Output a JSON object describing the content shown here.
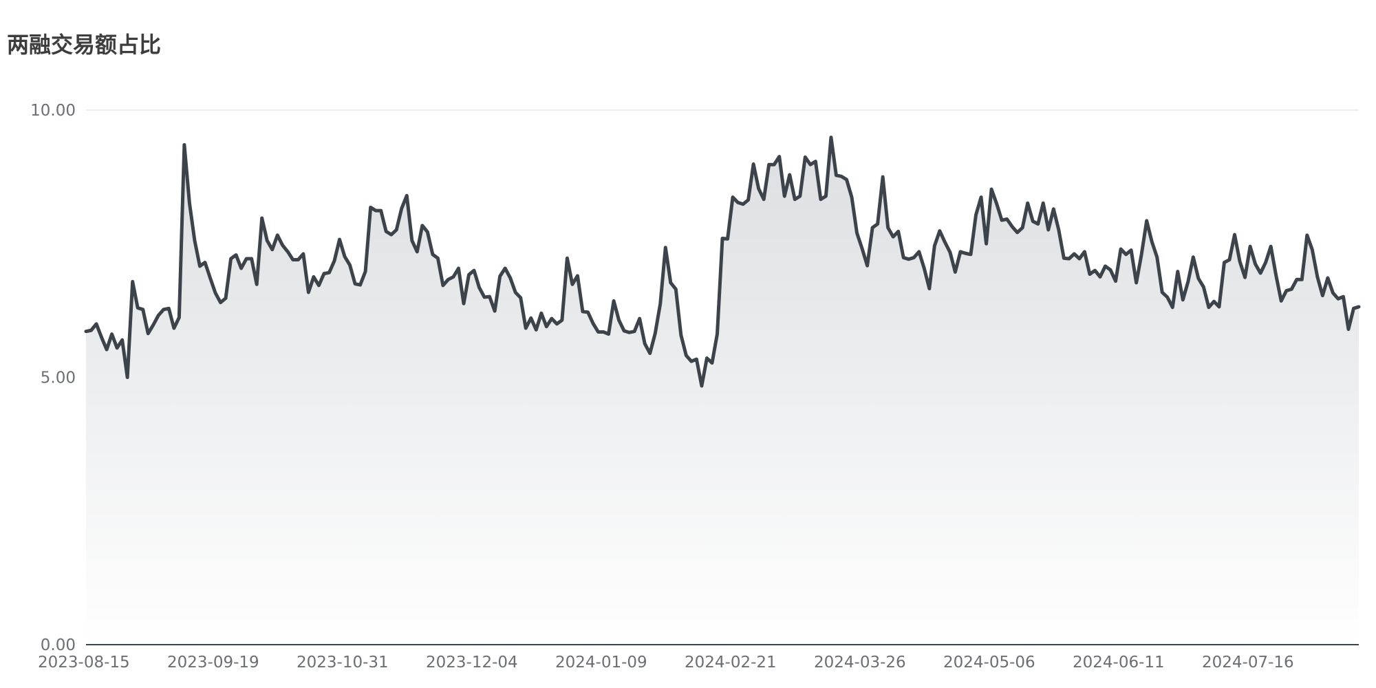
{
  "chart_data": {
    "type": "area",
    "title": "两融交易额占比",
    "xlabel": "",
    "ylabel": "",
    "ylim": [
      0,
      10
    ],
    "yticks": [
      "0.00",
      "5.00",
      "10.00"
    ],
    "xticks": [
      "2023-08-15",
      "2023-09-19",
      "2023-10-31",
      "2023-12-04",
      "2024-01-09",
      "2024-02-21",
      "2024-03-26",
      "2024-05-06",
      "2024-06-11",
      "2024-07-16"
    ],
    "grid": true,
    "legend": "none",
    "line_color": "#3d434b",
    "fill_color": "#dcdee1",
    "values": [
      5.86,
      5.88,
      6.0,
      5.75,
      5.52,
      5.81,
      5.55,
      5.7,
      5.0,
      6.79,
      6.3,
      6.27,
      5.82,
      5.98,
      6.16,
      6.27,
      6.29,
      5.92,
      6.12,
      9.35,
      8.26,
      7.56,
      7.08,
      7.15,
      6.86,
      6.58,
      6.4,
      6.48,
      7.22,
      7.29,
      7.04,
      7.22,
      7.22,
      6.74,
      7.98,
      7.56,
      7.39,
      7.66,
      7.47,
      7.35,
      7.2,
      7.2,
      7.31,
      6.59,
      6.88,
      6.72,
      6.94,
      6.96,
      7.18,
      7.58,
      7.26,
      7.1,
      6.75,
      6.73,
      6.98,
      8.18,
      8.12,
      8.12,
      7.73,
      7.67,
      7.76,
      8.16,
      8.4,
      7.56,
      7.35,
      7.84,
      7.72,
      7.3,
      7.23,
      6.72,
      6.83,
      6.88,
      7.04,
      6.38,
      6.92,
      7.0,
      6.68,
      6.5,
      6.51,
      6.24,
      6.89,
      7.04,
      6.86,
      6.59,
      6.49,
      5.92,
      6.11,
      5.89,
      6.2,
      5.95,
      6.1,
      6.0,
      6.07,
      7.23,
      6.74,
      6.9,
      6.23,
      6.22,
      6.01,
      5.85,
      5.85,
      5.81,
      6.43,
      6.07,
      5.87,
      5.84,
      5.86,
      6.1,
      5.63,
      5.45,
      5.82,
      6.38,
      7.43,
      6.77,
      6.65,
      5.79,
      5.41,
      5.3,
      5.34,
      4.84,
      5.36,
      5.27,
      5.81,
      7.6,
      7.59,
      8.37,
      8.27,
      8.24,
      8.32,
      8.99,
      8.53,
      8.33,
      8.98,
      8.98,
      9.13,
      8.39,
      8.79,
      8.33,
      8.39,
      9.12,
      8.98,
      9.04,
      8.33,
      8.39,
      9.49,
      8.78,
      8.76,
      8.7,
      8.37,
      7.7,
      7.41,
      7.09,
      7.8,
      7.87,
      8.75,
      7.8,
      7.63,
      7.73,
      7.24,
      7.21,
      7.24,
      7.35,
      7.04,
      6.66,
      7.46,
      7.74,
      7.53,
      7.34,
      6.97,
      7.35,
      7.32,
      7.3,
      8.04,
      8.37,
      7.5,
      8.52,
      8.25,
      7.94,
      7.96,
      7.82,
      7.71,
      7.8,
      8.26,
      7.92,
      7.87,
      8.26,
      7.76,
      8.15,
      7.76,
      7.23,
      7.22,
      7.31,
      7.22,
      7.35,
      6.93,
      7.0,
      6.88,
      7.08,
      7.01,
      6.8,
      7.4,
      7.3,
      7.38,
      6.77,
      7.3,
      7.93,
      7.54,
      7.25,
      6.59,
      6.5,
      6.31,
      6.98,
      6.45,
      6.79,
      7.25,
      6.85,
      6.69,
      6.31,
      6.42,
      6.32,
      7.15,
      7.2,
      7.67,
      7.17,
      6.87,
      7.45,
      7.12,
      6.95,
      7.15,
      7.45,
      6.91,
      6.43,
      6.62,
      6.65,
      6.83,
      6.83,
      7.66,
      7.39,
      6.88,
      6.53,
      6.86,
      6.58,
      6.47,
      6.51,
      5.9,
      6.29,
      6.32
    ]
  }
}
